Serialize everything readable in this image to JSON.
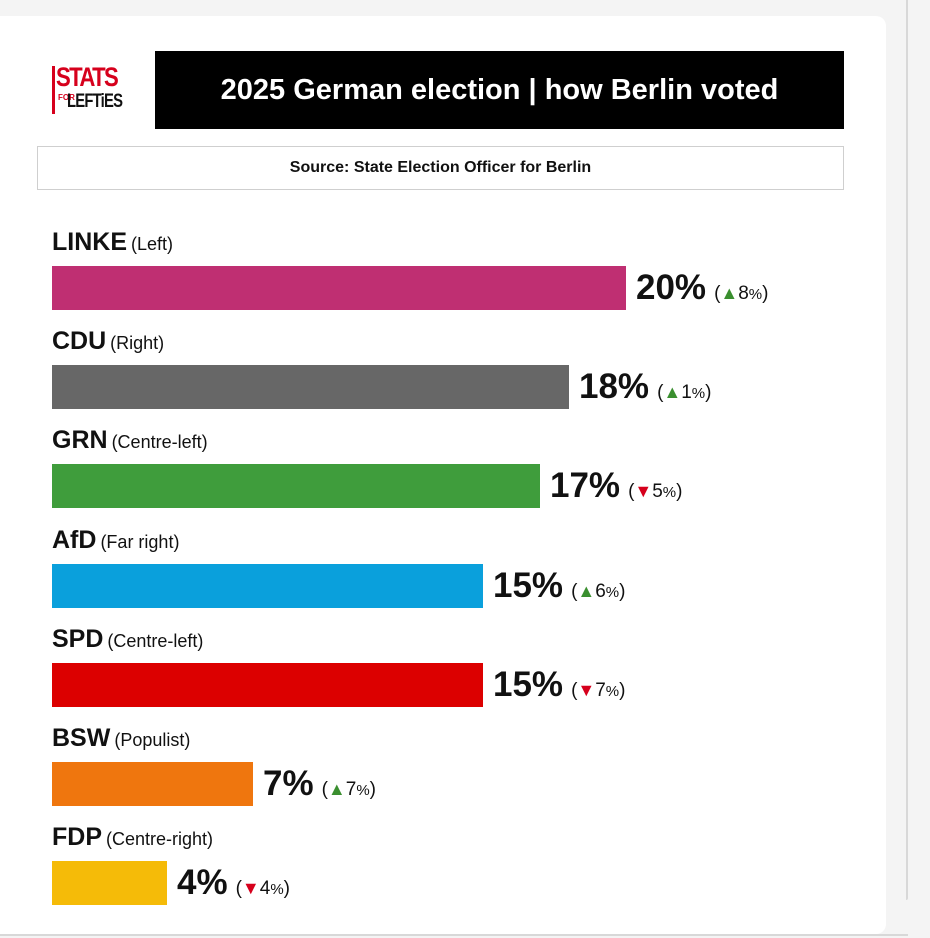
{
  "logo": {
    "line1": "STATS",
    "for": "FOR",
    "line2": "LEFTiES"
  },
  "chart_data": {
    "type": "bar",
    "orientation": "horizontal",
    "title": "2025 German election | how Berlin voted",
    "subtitle": "Source: State Election Officer for Berlin",
    "unit": "%",
    "categories": [
      "LINKE",
      "CDU",
      "GRN",
      "AfD",
      "SPD",
      "BSW",
      "FDP"
    ],
    "descriptors": [
      "(Left)",
      "(Right)",
      "(Centre-left)",
      "(Far right)",
      "(Centre-left)",
      "(Populist)",
      "(Centre-right)"
    ],
    "values": [
      20,
      18,
      17,
      15,
      15,
      7,
      4
    ],
    "value_labels": [
      "20%",
      "18%",
      "17%",
      "15%",
      "15%",
      "7%",
      "4%"
    ],
    "changes": [
      8,
      1,
      -5,
      6,
      -7,
      7,
      -4
    ],
    "change_labels": [
      "8",
      "1",
      "5",
      "6",
      "7",
      "7",
      "4"
    ],
    "colors": [
      "#bf2f72",
      "#676767",
      "#3f9d3c",
      "#0aa0dc",
      "#dc0000",
      "#ef760e",
      "#f5bb08"
    ],
    "up_color": "#3a8f2f",
    "down_color": "#d6001c"
  }
}
